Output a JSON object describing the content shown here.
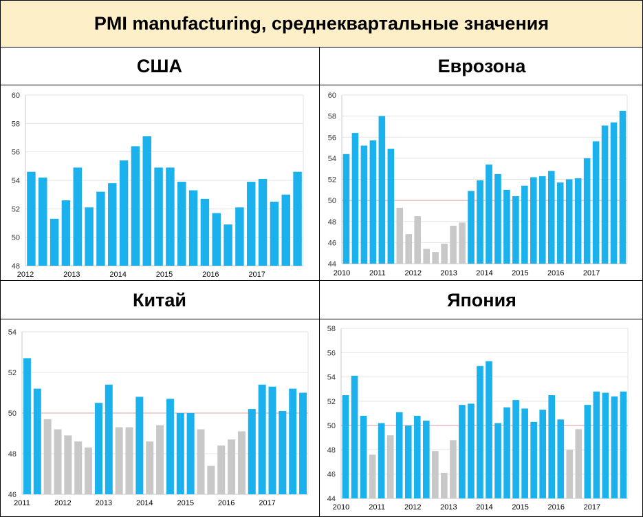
{
  "title": "PMI manufacturing, среднеквартальные значения",
  "colors": {
    "above": "#1ab1ec",
    "below": "#c8c8c8",
    "threshold": "#e5a2a2",
    "header_bg": "#fdf0c8",
    "grid": "#e3e3e3"
  },
  "chart_data": [
    {
      "type": "bar",
      "panel_title": "США",
      "ylim": [
        48,
        60
      ],
      "yticks": [
        48,
        50,
        52,
        54,
        56,
        58,
        60
      ],
      "year_labels": [
        "2012",
        "2013",
        "2014",
        "2015",
        "2016",
        "2017"
      ],
      "year_start_index": [
        0,
        4,
        8,
        12,
        16,
        20
      ],
      "values": [
        54.6,
        54.2,
        51.3,
        52.6,
        54.9,
        52.1,
        53.2,
        53.8,
        55.4,
        56.4,
        57.1,
        54.9,
        54.9,
        53.9,
        53.3,
        52.7,
        51.7,
        50.9,
        52.1,
        53.9,
        54.1,
        52.5,
        53.0,
        54.6
      ]
    },
    {
      "type": "bar",
      "panel_title": "Еврозона",
      "ylim": [
        44,
        60
      ],
      "yticks": [
        44,
        46,
        48,
        50,
        52,
        54,
        56,
        58,
        60
      ],
      "threshold": 50,
      "year_labels": [
        "2010",
        "2011",
        "2012",
        "2013",
        "2014",
        "2015",
        "2016",
        "2017"
      ],
      "year_start_index": [
        0,
        4,
        8,
        12,
        16,
        20,
        24,
        28
      ],
      "values": [
        54.4,
        56.4,
        55.2,
        55.7,
        58.0,
        54.9,
        49.3,
        46.8,
        48.5,
        45.4,
        45.1,
        45.9,
        47.6,
        47.9,
        50.9,
        51.9,
        53.4,
        52.5,
        51.0,
        50.4,
        51.4,
        52.2,
        52.3,
        52.8,
        51.7,
        52.0,
        52.1,
        54.0,
        55.6,
        57.1,
        57.4,
        58.5
      ]
    },
    {
      "type": "bar",
      "panel_title": "Китай",
      "ylim": [
        46,
        54
      ],
      "yticks": [
        46,
        48,
        50,
        52,
        54
      ],
      "threshold": 50,
      "year_labels": [
        "2011",
        "2012",
        "2013",
        "2014",
        "2015",
        "2016",
        "2017"
      ],
      "year_start_index": [
        0,
        4,
        8,
        12,
        16,
        20,
        24
      ],
      "values": [
        52.7,
        51.2,
        49.7,
        49.2,
        48.9,
        48.6,
        48.3,
        50.5,
        51.4,
        49.3,
        49.3,
        50.8,
        48.6,
        49.4,
        50.7,
        50.0,
        50.0,
        49.2,
        47.4,
        48.4,
        48.7,
        49.1,
        50.2,
        51.4,
        51.3,
        50.1,
        51.2,
        51.0
      ]
    },
    {
      "type": "bar",
      "panel_title": "Япония",
      "ylim": [
        44,
        58
      ],
      "yticks": [
        44,
        46,
        48,
        50,
        52,
        54,
        56,
        58
      ],
      "threshold": 50,
      "year_labels": [
        "2010",
        "2011",
        "2012",
        "2013",
        "2014",
        "2015",
        "2016",
        "2017"
      ],
      "year_start_index": [
        0,
        4,
        8,
        12,
        16,
        20,
        24,
        28
      ],
      "values": [
        52.5,
        54.1,
        50.8,
        47.6,
        50.2,
        49.2,
        51.1,
        50.0,
        50.8,
        50.4,
        47.9,
        46.1,
        48.8,
        51.7,
        51.8,
        54.9,
        55.3,
        50.2,
        51.5,
        52.1,
        51.4,
        50.3,
        51.3,
        52.5,
        50.5,
        48.0,
        49.7,
        51.7,
        52.8,
        52.7,
        52.4,
        52.8
      ]
    }
  ]
}
